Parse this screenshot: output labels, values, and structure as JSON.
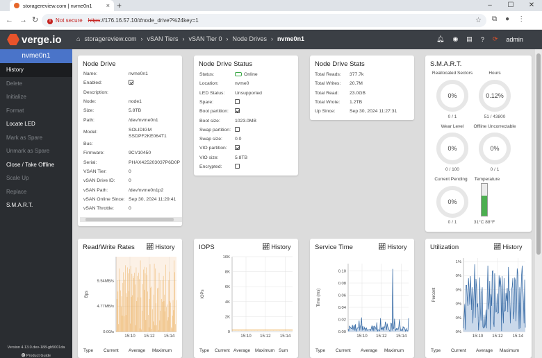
{
  "browser": {
    "tab_title": "storagereview.com | nvme0n1",
    "not_secure": "Not secure",
    "url_scheme": "https",
    "url_rest": "://176.16.57.10/#node_drive?%24key=1"
  },
  "appbar": {
    "logo": "verge.io",
    "crumbs": [
      "storagereview.com",
      "vSAN Tiers",
      "vSAN Tier 0",
      "Node Drives"
    ],
    "current": "nvme0n1",
    "user": "admin"
  },
  "sidebar": {
    "title": "nvme0n1",
    "items": [
      "History",
      "Delete",
      "Initialize",
      "Format",
      "Locate LED",
      "Mark as Spare",
      "Unmark as Spare",
      "Close / Take Offline",
      "Scale Up",
      "Replace",
      "S.M.A.R.T."
    ],
    "version": "Version 4.13.0.dev-188-gb5001da",
    "guide": "Product Guide"
  },
  "node_drive": {
    "title": "Node Drive",
    "fields": [
      {
        "k": "Name:",
        "v": "nvme0n1"
      },
      {
        "k": "Enabled:",
        "v": ""
      },
      {
        "k": "Description:",
        "v": ""
      },
      {
        "k": "Node:",
        "v": "node1"
      },
      {
        "k": "Size:",
        "v": "5.8TB"
      },
      {
        "k": "Path:",
        "v": "/dev/nvme0n1"
      },
      {
        "k": "Model:",
        "v": "SOLIDIGM\nSSDPF2KE064T1"
      },
      {
        "k": "Bus:",
        "v": ""
      },
      {
        "k": "Firmware:",
        "v": "9CV10450"
      },
      {
        "k": "Serial:",
        "v": "PHAX425203037P6D0P"
      },
      {
        "k": "VSAN Tier:",
        "v": "0"
      },
      {
        "k": "vSAN Drive ID:",
        "v": "0"
      },
      {
        "k": "vSAN Path:",
        "v": "/dev/nvme0n1p2"
      },
      {
        "k": "vSAN Online Since:",
        "v": "Sep 30, 2024 11:29:41"
      },
      {
        "k": "vSAN Throttle:",
        "v": "0"
      }
    ]
  },
  "drive_status": {
    "title": "Node Drive Status",
    "fields": [
      {
        "k": "Status:",
        "v": "Online"
      },
      {
        "k": "Location:",
        "v": "nvme0"
      },
      {
        "k": "LED Status:",
        "v": "Unsupported"
      },
      {
        "k": "Spare:",
        "v": ""
      },
      {
        "k": "Boot partition:",
        "v": ""
      },
      {
        "k": "Boot size:",
        "v": "1023.0MB"
      },
      {
        "k": "Swap partition:",
        "v": ""
      },
      {
        "k": "Swap size:",
        "v": "0.0"
      },
      {
        "k": "VIO partition:",
        "v": ""
      },
      {
        "k": "VIO size:",
        "v": "5.8TB"
      },
      {
        "k": "Encrypted:",
        "v": ""
      }
    ]
  },
  "drive_stats": {
    "title": "Node Drive Stats",
    "fields": [
      {
        "k": "Total Reads:",
        "v": "377.7k"
      },
      {
        "k": "Total Writes:",
        "v": "20.7M"
      },
      {
        "k": "Total Read:",
        "v": "23.0GB"
      },
      {
        "k": "Total Wrote:",
        "v": "1.2TB"
      },
      {
        "k": "Up Since:",
        "v": "Sep 30, 2024 11:27:31"
      }
    ]
  },
  "smart": {
    "title": "S.M.A.R.T.",
    "gauges": [
      {
        "label": "Reallocated Sectors",
        "value": "0%",
        "sub": "0 / 1"
      },
      {
        "label": "Hours",
        "value": "0.12%",
        "sub": "51 / 43800"
      },
      {
        "label": "Wear Level",
        "value": "0%",
        "sub": "0 / 100"
      },
      {
        "label": "Offline Uncorrectable",
        "value": "0%",
        "sub": "0 / 1"
      },
      {
        "label": "Current Pending",
        "value": "0%",
        "sub": "0 / 1"
      }
    ],
    "temperature": {
      "label": "Temperature",
      "reading": "31°C 88°F",
      "level": 0.62
    }
  },
  "charts_ui": {
    "history": "History",
    "footers": [
      [
        "Type",
        "Current",
        "Average",
        "Maximum"
      ],
      [
        "Type",
        "Current",
        "Average",
        "Maximum",
        "Sum"
      ],
      [
        "Type",
        "Current",
        "Average",
        "Maximum"
      ],
      [
        "Type",
        "Current",
        "Average",
        "Maximum"
      ]
    ]
  },
  "chart_data": [
    {
      "type": "bar",
      "title": "Read/Write Rates",
      "ylabel": "Bps",
      "ytick_labels": [
        "0.00/s",
        "4.77MB/s",
        "9.54MB/s"
      ],
      "yticks": [
        0,
        4.77,
        9.54
      ],
      "ylim": [
        0,
        14.0
      ],
      "xtick_labels": [
        "15:10",
        "15:12",
        "15:14"
      ],
      "series": [
        {
          "values": [
            0.2,
            6.1,
            9.6,
            7.5,
            1.4,
            11.8,
            9.7,
            7.7,
            4.7,
            6.6,
            3.0,
            9.1,
            11.1,
            2.9,
            9.7,
            12.4,
            3.1,
            7.2,
            6.5,
            12.0,
            10.9,
            7.6,
            11.7,
            1.5,
            12.3,
            6.5,
            10.8,
            6.8,
            10.4,
            10.0,
            11.0,
            8.8,
            1.2,
            12.0,
            5.7,
            10.4,
            6.4,
            11.0,
            9.8,
            0.6,
            13.3,
            6.4,
            0.4,
            3.9,
            8.9,
            11.6,
            7.8,
            12.1,
            10.9,
            2.2,
            12.0,
            10.6,
            7.5,
            3.1,
            0.8,
            6.1,
            12.6,
            8.2,
            8.4,
            0.5,
            4.2,
            1.9,
            6.9,
            12.7,
            1.2,
            11.8,
            5.3,
            1.2,
            8.1,
            8.2,
            0.3,
            11.0,
            2.1,
            3.9,
            9.6,
            6.1,
            5.6,
            9.6,
            10.4,
            5.7,
            6.9,
            3.8,
            12.5,
            4.6,
            5.1,
            2.1,
            2.7,
            9.6,
            11.2,
            5.7,
            5.4,
            0.8,
            0.6,
            3.0,
            5.9,
            4.0,
            13.3,
            11.1,
            1.4,
            5.9
          ]
        }
      ],
      "color": "#e69a2e"
    },
    {
      "type": "line",
      "title": "IOPS",
      "ylabel": "IOPs",
      "ytick_labels": [
        "0",
        "2K",
        "4K",
        "6K",
        "8K",
        "10K"
      ],
      "yticks": [
        0,
        2,
        4,
        6,
        8,
        10
      ],
      "ylim": [
        0,
        10
      ],
      "xtick_labels": [
        "15:10",
        "15:12",
        "15:14"
      ],
      "series": [
        {
          "values": [
            0.2,
            0.2,
            0.2,
            0.2,
            0.2,
            0.2,
            0.2,
            0.2,
            0.2,
            0.2,
            0.2,
            0.2,
            0.2,
            0.2,
            0.2,
            0.2,
            0.2,
            0.2,
            0.2,
            0.2
          ]
        }
      ],
      "color": "#e69a2e"
    },
    {
      "type": "area",
      "title": "Service Time",
      "ylabel": "Time (ms)",
      "ytick_labels": [
        "0.00",
        "0.02",
        "0.04",
        "0.06",
        "0.08",
        "0.10"
      ],
      "yticks": [
        0,
        0.02,
        0.04,
        0.06,
        0.08,
        0.1
      ],
      "ylim": [
        0,
        0.112
      ],
      "xtick_labels": [
        "15:10",
        "15:12",
        "15:14"
      ],
      "series": [
        {
          "values": [
            0.004,
            0.001,
            0.009,
            0.008,
            0.007,
            0.005,
            0.005,
            0.011,
            0.003,
            0.008,
            0.011,
            0.002,
            0.012,
            0.001,
            0.003,
            0.006,
            0.006,
            0.007,
            0.018,
            0.002,
            0.009,
            0.012,
            0.023,
            0.002,
            0.009,
            0.004,
            0.004,
            0.007,
            0.002,
            0.005,
            0.006,
            0.002,
            0.003,
            0.003,
            0.003,
            0.003,
            0.004,
            0.002,
            0.006,
            0.01,
            0.002,
            0.009,
            0.001,
            0.009,
            0.008,
            0.006,
            0.003,
            0.015,
            0.001,
            0.003,
            0.003,
            0.001,
            0.003,
            0.022,
            0.003,
            0.006,
            0.004,
            0.008,
            0.002,
            0.008,
            0.007,
            0.016,
            0.012,
            0.003,
            0.013,
            0.008,
            0.006,
            0.003,
            0.001,
            0.001,
            0.014,
            0.013,
            0.002,
            0.103,
            0.005,
            0.006,
            0.021,
            0.005,
            0.002,
            0.005,
            0.003,
            0.005,
            0.004,
            0.008,
            0.02,
            0.01,
            0.002,
            0.002,
            0.004,
            0.002,
            0.008,
            0.006,
            0.007,
            0.004,
            0.001,
            0.005,
            0.002,
            0.001,
            0.002,
            0.022
          ]
        }
      ],
      "color": "#3d6fa8"
    },
    {
      "type": "area",
      "title": "Utilization",
      "ylabel": "Percent",
      "ytick_labels": [
        "0%",
        "0%",
        "0%",
        "0%",
        "0%",
        "1%"
      ],
      "yticks": [
        0,
        0.2,
        0.4,
        0.6,
        0.8,
        1.0
      ],
      "ylim": [
        0,
        1.05
      ],
      "xtick_labels": [
        "15:10",
        "15:12",
        "15:14"
      ],
      "series": [
        {
          "values": [
            0.05,
            0.22,
            0.39,
            0.03,
            0.66,
            0.66,
            0.49,
            0.37,
            0.76,
            0.62,
            0.39,
            0.79,
            0.61,
            0.31,
            0.63,
            0.12,
            0.38,
            0.59,
            0.96,
            0.2,
            0.75,
            0.63,
            0.35,
            0.4,
            0.02,
            0.16,
            0.77,
            0.32,
            0.16,
            0.56,
            0.63,
            0.07,
            0.05,
            0.24,
            0.06,
            0.11,
            0.31,
            0.05,
            0.54,
            0.94,
            0.32,
            0.42,
            0.72,
            0.03,
            0.53,
            0.37,
            0.86,
            0.87,
            0.13,
            0.07,
            0.83,
            0.55,
            0.28,
            0.29,
            0.54,
            0.26,
            0.27,
            0.8,
            0.64,
            0.77,
            0.65,
            0.01,
            0.79,
            0.31,
            0.12,
            0.76,
            0.29,
            0.3,
            0.55,
            0.44,
            0.62,
            0.28,
            0.92,
            0.59,
            0.57,
            0.12,
            0.38,
            0.6,
            0.64,
            0.76,
            0.18,
            0.29,
            0.77,
            0.73,
            0.15,
            0.45,
            0.9,
            0.83,
            0.52,
            0.04,
            0.63,
            0.05,
            0.54,
            0.81,
            0.94,
            0.63,
            0.43,
            0.12,
            0.74,
            0.06
          ]
        }
      ],
      "color": "#3d6fa8"
    }
  ]
}
